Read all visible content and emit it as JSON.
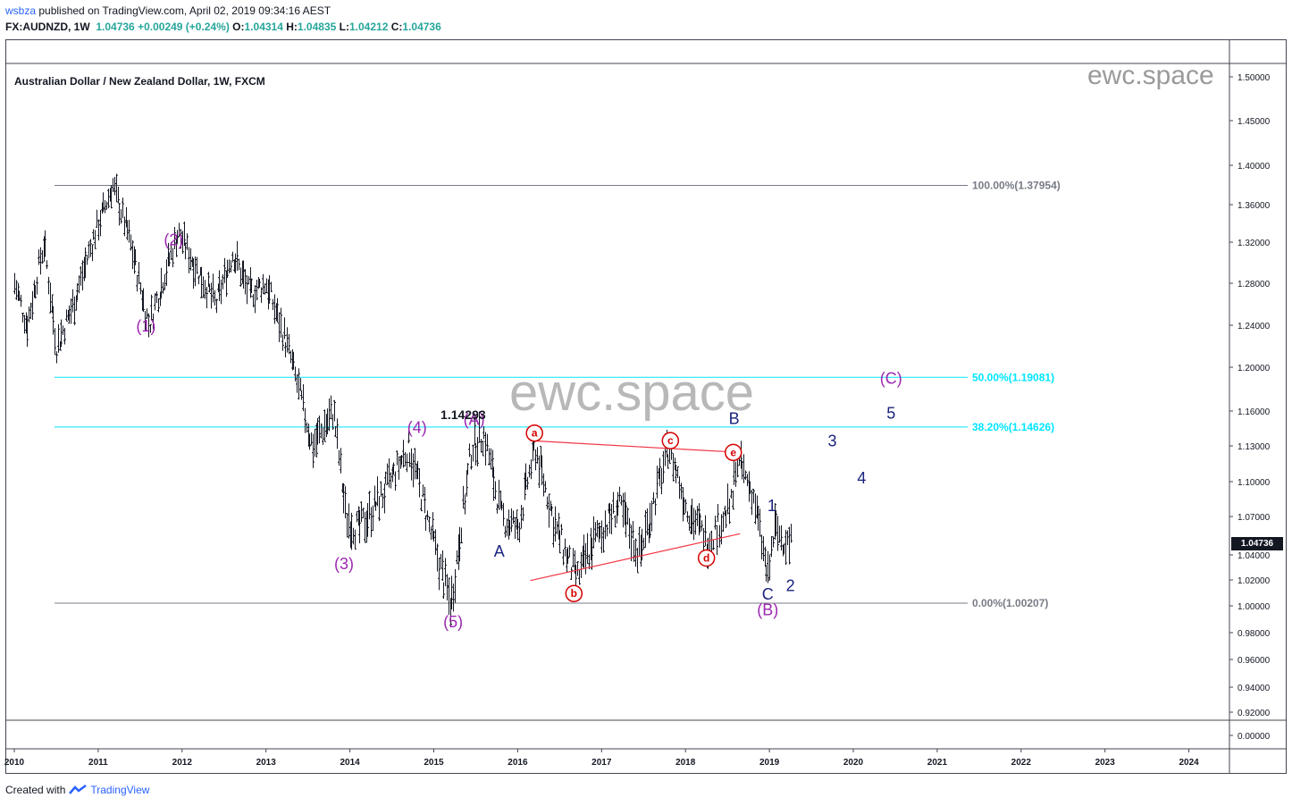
{
  "header": {
    "user": "wsbza",
    "published": "published on TradingView.com, April 02, 2019 09:34:16 AEST",
    "symbol": "FX:AUDNZD, 1W",
    "last": "1.04736",
    "change": "+0.00249 (+0.24%)",
    "o_label": "O:",
    "o": "1.04314",
    "h_label": "H:",
    "h": "1.04835",
    "l_label": "L:",
    "l": "1.04212",
    "c_label": "C:",
    "c": "1.04736"
  },
  "pane_title": "Australian Dollar / New Zealand Dollar, 1W, FXCM",
  "watermarks": {
    "big": "ewc.space",
    "small": "ewc.space"
  },
  "price_tag": "1.04736",
  "footer": {
    "created_with": "Created with",
    "brand": "TradingView"
  },
  "colors": {
    "fib_grey": "#787b86",
    "fib_cyan": "#00e5ff",
    "magenta": "#9c27b0",
    "navy": "#1a237e",
    "red": "#d50000",
    "bars": "#131722"
  },
  "chart_data": {
    "type": "ohlc",
    "title": "Australian Dollar / New Zealand Dollar, 1W, FXCM",
    "ylim": [
      0.905,
      1.515
    ],
    "y_ticks": [
      "1.50000",
      "1.45000",
      "1.40000",
      "1.36000",
      "1.32000",
      "1.28000",
      "1.24000",
      "1.20000",
      "1.16000",
      "1.13000",
      "1.10000",
      "1.07000",
      "1.04000",
      "1.02000",
      "1.00000",
      "0.98000",
      "0.96000",
      "0.94000",
      "0.92000"
    ],
    "y_tick_values": [
      1.5,
      1.45,
      1.4,
      1.36,
      1.32,
      1.28,
      1.24,
      1.2,
      1.16,
      1.13,
      1.1,
      1.07,
      1.04,
      1.02,
      1.0,
      0.98,
      0.96,
      0.94,
      0.92
    ],
    "volume_axis_tick": "0.00000",
    "x_ticks": [
      "2010",
      "2011",
      "2012",
      "2013",
      "2014",
      "2015",
      "2016",
      "2017",
      "2018",
      "2019",
      "2020",
      "2021",
      "2022",
      "2023",
      "2024"
    ],
    "price_path": [
      [
        2010.0,
        1.28
      ],
      [
        2010.15,
        1.24
      ],
      [
        2010.35,
        1.32
      ],
      [
        2010.5,
        1.22
      ],
      [
        2010.7,
        1.26
      ],
      [
        2011.0,
        1.34
      ],
      [
        2011.17,
        1.38
      ],
      [
        2011.35,
        1.33
      ],
      [
        2011.6,
        1.24
      ],
      [
        2011.75,
        1.28
      ],
      [
        2011.95,
        1.33
      ],
      [
        2012.2,
        1.29
      ],
      [
        2012.4,
        1.26
      ],
      [
        2012.6,
        1.31
      ],
      [
        2012.8,
        1.27
      ],
      [
        2013.0,
        1.28
      ],
      [
        2013.25,
        1.22
      ],
      [
        2013.55,
        1.13
      ],
      [
        2013.8,
        1.16
      ],
      [
        2013.95,
        1.07
      ],
      [
        2014.1,
        1.06
      ],
      [
        2014.4,
        1.09
      ],
      [
        2014.7,
        1.13
      ],
      [
        2014.95,
        1.06
      ],
      [
        2015.2,
        1.0
      ],
      [
        2015.45,
        1.13
      ],
      [
        2015.6,
        1.14
      ],
      [
        2015.8,
        1.07
      ],
      [
        2016.0,
        1.06
      ],
      [
        2016.2,
        1.13
      ],
      [
        2016.45,
        1.06
      ],
      [
        2016.7,
        1.02
      ],
      [
        2016.9,
        1.05
      ],
      [
        2017.2,
        1.08
      ],
      [
        2017.45,
        1.04
      ],
      [
        2017.8,
        1.13
      ],
      [
        2018.0,
        1.08
      ],
      [
        2018.25,
        1.05
      ],
      [
        2018.55,
        1.08
      ],
      [
        2018.6,
        1.12
      ],
      [
        2018.8,
        1.09
      ],
      [
        2018.98,
        1.02
      ],
      [
        2019.05,
        1.06
      ],
      [
        2019.25,
        1.04736
      ]
    ],
    "fib_levels": [
      {
        "label": "100.00%(1.37954)",
        "value": 1.37954,
        "color": "grey"
      },
      {
        "label": "50.00%(1.19081)",
        "value": 1.19081,
        "color": "cyan"
      },
      {
        "label": "38.20%(1.14626)",
        "value": 1.14626,
        "color": "cyan"
      },
      {
        "label": "0.00%(1.00207)",
        "value": 1.00207,
        "color": "grey"
      }
    ],
    "trendlines": [
      {
        "from": [
          2016.15,
          1.1345
        ],
        "to": [
          2018.65,
          1.1245
        ]
      },
      {
        "from": [
          2016.15,
          1.0195
        ],
        "to": [
          2018.65,
          1.0565
        ]
      }
    ],
    "wave_labels": [
      {
        "text": "(1)",
        "t": 2011.57,
        "p": 1.234,
        "color": "magenta"
      },
      {
        "text": "(2)",
        "t": 2011.9,
        "p": 1.317,
        "color": "magenta"
      },
      {
        "text": "(3)",
        "t": 2013.93,
        "p": 1.0285,
        "color": "magenta"
      },
      {
        "text": "(4)",
        "t": 2014.8,
        "p": 1.141,
        "color": "magenta"
      },
      {
        "text": "(5)",
        "t": 2015.23,
        "p": 0.984,
        "color": "magenta"
      },
      {
        "text": "(A)",
        "t": 2015.48,
        "p": 1.148,
        "color": "magenta"
      },
      {
        "text": "(B)",
        "t": 2018.98,
        "p": 0.993,
        "color": "magenta"
      },
      {
        "text": "(C)",
        "t": 2020.45,
        "p": 1.185,
        "color": "magenta"
      },
      {
        "text": "A",
        "t": 2015.78,
        "p": 1.0385,
        "color": "navy"
      },
      {
        "text": "B",
        "t": 2018.58,
        "p": 1.149,
        "color": "navy"
      },
      {
        "text": "C",
        "t": 2018.98,
        "p": 1.005,
        "color": "navy"
      },
      {
        "text": "1",
        "t": 2019.03,
        "p": 1.0745,
        "color": "navy"
      },
      {
        "text": "2",
        "t": 2019.25,
        "p": 1.0115,
        "color": "navy"
      },
      {
        "text": "3",
        "t": 2019.75,
        "p": 1.1295,
        "color": "navy"
      },
      {
        "text": "4",
        "t": 2020.1,
        "p": 1.0985,
        "color": "navy"
      },
      {
        "text": "5",
        "t": 2020.45,
        "p": 1.1535,
        "color": "navy"
      }
    ],
    "circle_labels": [
      {
        "text": "a",
        "t": 2016.2,
        "p": 1.141
      },
      {
        "text": "b",
        "t": 2016.67,
        "p": 1.0095
      },
      {
        "text": "c",
        "t": 2017.82,
        "p": 1.1345
      },
      {
        "text": "d",
        "t": 2018.25,
        "p": 1.0375
      },
      {
        "text": "e",
        "t": 2018.57,
        "p": 1.1245
      }
    ],
    "annotations": [
      {
        "text": "1.14293",
        "t": 2015.35,
        "p": 1.153
      }
    ]
  }
}
